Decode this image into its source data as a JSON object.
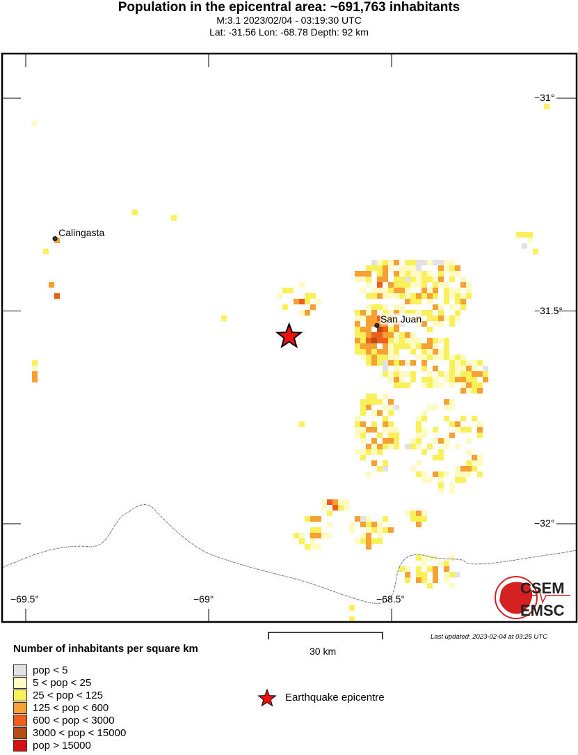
{
  "header": {
    "title": "Population in the epicentral area: ~691,763 inhabitants",
    "subtitle_1": "M:3.1 2023/02/04 - 03:19:30 UTC",
    "subtitle_2": "Lat: -31.56 Lon: -68.78 Depth: 92 km"
  },
  "map": {
    "lon_ticks": [
      {
        "value": -69.5,
        "label": "−69.5°"
      },
      {
        "value": -69,
        "label": "−69°"
      },
      {
        "value": -68.5,
        "label": "−68.5°"
      }
    ],
    "lat_ticks": [
      {
        "value": -31,
        "label": "−31°"
      },
      {
        "value": -31.5,
        "label": "−31.5°"
      },
      {
        "value": -32,
        "label": "−32°"
      }
    ],
    "places": [
      {
        "name": "Calingasta",
        "lon": -69.42,
        "lat": -31.33
      },
      {
        "name": "San Juan",
        "lon": -68.54,
        "lat": -31.534
      }
    ],
    "epicentre": {
      "lon": -68.78,
      "lat": -31.56,
      "color": "#ee1111"
    },
    "scale_bar": "30 km",
    "last_updated": "Last updated: 2023-02-04 at 03:25 UTC",
    "logo": {
      "top": "CSEM",
      "bottom": "EMSC",
      "color": "#d42020"
    }
  },
  "legend": {
    "title": "Number of inhabitants per square km",
    "classes": [
      {
        "label": "pop < 5",
        "color": "#e2e2e2"
      },
      {
        "label": "5 < pop < 25",
        "color": "#fdfac4"
      },
      {
        "label": "25 < pop < 125",
        "color": "#f9f05a"
      },
      {
        "label": "125 < pop < 600",
        "color": "#f7a033"
      },
      {
        "label": "600 < pop < 3000",
        "color": "#ef5e1c"
      },
      {
        "label": "3000 < pop < 15000",
        "color": "#b84c14"
      },
      {
        "label": "pop > 15000",
        "color": "#d41010"
      }
    ],
    "epicentre_label": "Earthquake epicentre"
  }
}
